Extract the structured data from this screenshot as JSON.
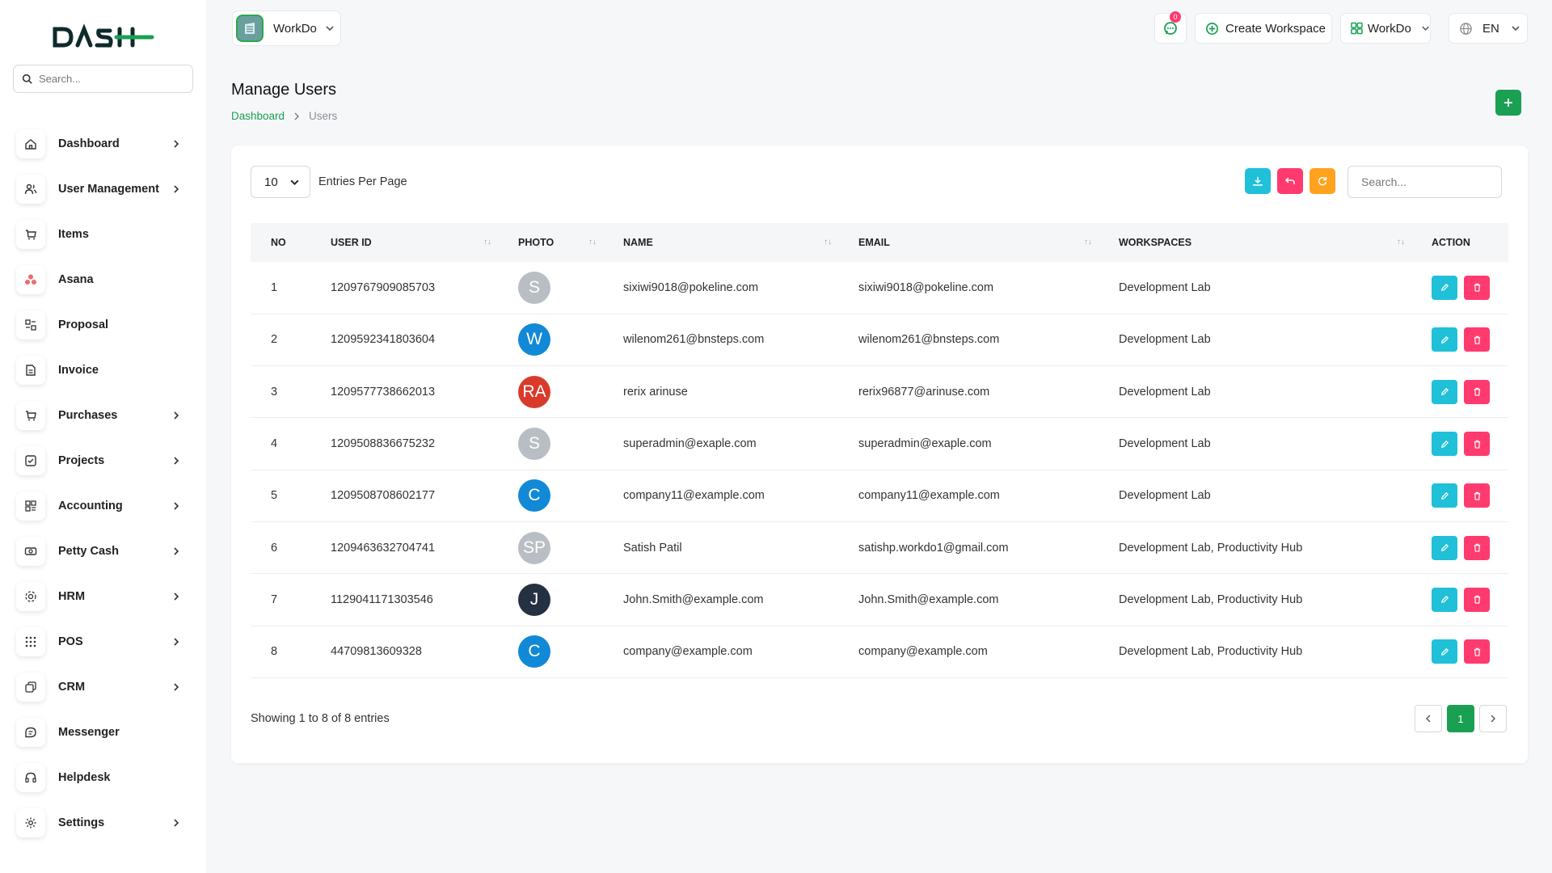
{
  "sidebar": {
    "logo_text": "DASH",
    "search_placeholder": "Search...",
    "items": [
      {
        "label": "Dashboard",
        "icon": "home-icon",
        "has_children": true
      },
      {
        "label": "User Management",
        "icon": "users-icon",
        "has_children": true
      },
      {
        "label": "Items",
        "icon": "cart-icon",
        "has_children": false
      },
      {
        "label": "Asana",
        "icon": "asana-icon",
        "has_children": false
      },
      {
        "label": "Proposal",
        "icon": "proposal-icon",
        "has_children": false
      },
      {
        "label": "Invoice",
        "icon": "invoice-icon",
        "has_children": false
      },
      {
        "label": "Purchases",
        "icon": "cart-icon",
        "has_children": true
      },
      {
        "label": "Projects",
        "icon": "projects-icon",
        "has_children": true
      },
      {
        "label": "Accounting",
        "icon": "accounting-icon",
        "has_children": true
      },
      {
        "label": "Petty Cash",
        "icon": "cash-icon",
        "has_children": true
      },
      {
        "label": "HRM",
        "icon": "hrm-icon",
        "has_children": true
      },
      {
        "label": "POS",
        "icon": "grid-icon",
        "has_children": true
      },
      {
        "label": "CRM",
        "icon": "crm-icon",
        "has_children": true
      },
      {
        "label": "Messenger",
        "icon": "chat-icon",
        "has_children": false
      },
      {
        "label": "Helpdesk",
        "icon": "headset-icon",
        "has_children": false
      },
      {
        "label": "Settings",
        "icon": "gear-icon",
        "has_children": true
      }
    ]
  },
  "header": {
    "workspace_name": "WorkDo",
    "notification_count": "0",
    "create_workspace_label": "Create Workspace",
    "workspace_menu_label": "WorkDo",
    "language": "EN"
  },
  "page": {
    "title": "Manage Users",
    "breadcrumb_home": "Dashboard",
    "breadcrumb_current": "Users"
  },
  "table_controls": {
    "entries_value": "10",
    "entries_label": "Entries Per Page",
    "search_placeholder": "Search..."
  },
  "table": {
    "columns": [
      "NO",
      "USER ID",
      "PHOTO",
      "NAME",
      "EMAIL",
      "WORKSPACES",
      "ACTION"
    ],
    "rows": [
      {
        "no": "1",
        "user_id": "1209767909085703",
        "initials": "S",
        "avatar_color": "#b9bec4",
        "name": "sixiwi9018@pokeline.com",
        "email": "sixiwi9018@pokeline.com",
        "workspaces": "Development Lab"
      },
      {
        "no": "2",
        "user_id": "1209592341803604",
        "initials": "W",
        "avatar_color": "#1189d6",
        "name": "wilenom261@bnsteps.com",
        "email": "wilenom261@bnsteps.com",
        "workspaces": "Development Lab"
      },
      {
        "no": "3",
        "user_id": "1209577738662013",
        "initials": "RA",
        "avatar_color": "#d93b2b",
        "name": "rerix arinuse",
        "email": "rerix96877@arinuse.com",
        "workspaces": "Development Lab"
      },
      {
        "no": "4",
        "user_id": "1209508836675232",
        "initials": "S",
        "avatar_color": "#b9bec4",
        "name": "superadmin@exaple.com",
        "email": "superadmin@exaple.com",
        "workspaces": "Development Lab"
      },
      {
        "no": "5",
        "user_id": "1209508708602177",
        "initials": "C",
        "avatar_color": "#1189d6",
        "name": "company11@example.com",
        "email": "company11@example.com",
        "workspaces": "Development Lab"
      },
      {
        "no": "6",
        "user_id": "1209463632704741",
        "initials": "SP",
        "avatar_color": "#b9bec4",
        "name": "Satish Patil",
        "email": "satishp.workdo1@gmail.com",
        "workspaces": "Development Lab, Productivity Hub"
      },
      {
        "no": "7",
        "user_id": "1129041171303546",
        "initials": "J",
        "avatar_color": "#253142",
        "name": "John.Smith@example.com",
        "email": "John.Smith@example.com",
        "workspaces": "Development Lab, Productivity Hub"
      },
      {
        "no": "8",
        "user_id": "44709813609328",
        "initials": "C",
        "avatar_color": "#1189d6",
        "name": "company@example.com",
        "email": "company@example.com",
        "workspaces": "Development Lab, Productivity Hub"
      }
    ]
  },
  "footer": {
    "showing_text": "Showing 1 to 8 of 8 entries",
    "current_page": "1"
  },
  "colors": {
    "primary": "#1aa053",
    "cyan": "#1fc0d8",
    "pink": "#ff3a6e",
    "orange": "#ffa21d"
  }
}
